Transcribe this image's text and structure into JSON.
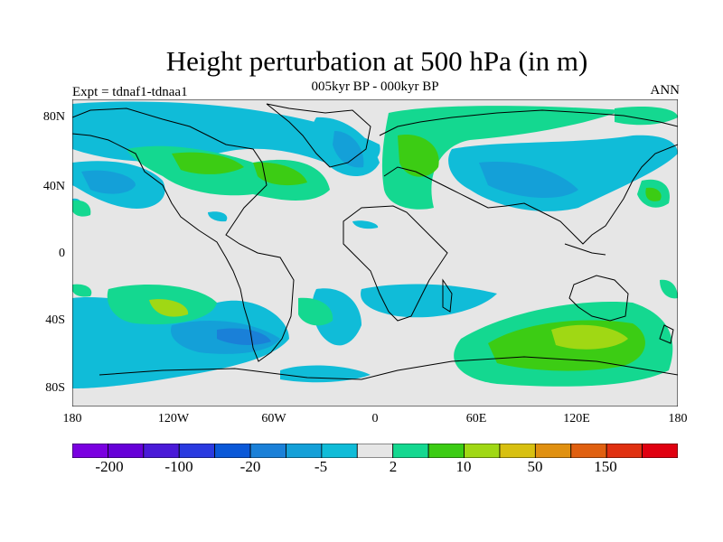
{
  "title": "Height perturbation at 500 hPa (in m)",
  "subtitle": "005kyr BP - 000kyr BP",
  "left_label": "Expt = tdnaf1-tdnaa1",
  "right_label": "ANN",
  "lat_ticks": [
    "80N",
    "40N",
    "0",
    "40S",
    "80S"
  ],
  "lon_ticks": [
    "180",
    "120W",
    "60W",
    "0",
    "60E",
    "120E",
    "180"
  ],
  "colorbar": {
    "colors": [
      "#7a00e0",
      "#6600d8",
      "#4a1ad8",
      "#2a3ae0",
      "#0a58d8",
      "#1a80d8",
      "#14a0d8",
      "#10bcd8",
      "#e6e6e6",
      "#14d890",
      "#3ccc14",
      "#a0d814",
      "#d8c010",
      "#e09010",
      "#e06010",
      "#e03010",
      "#e00010"
    ],
    "labels": [
      "-200",
      "-100",
      "-20",
      "-5",
      "2",
      "10",
      "50",
      "150"
    ]
  },
  "legend_colors": {
    "land_fill": "#e6e6e6",
    "coast": "#000000"
  }
}
